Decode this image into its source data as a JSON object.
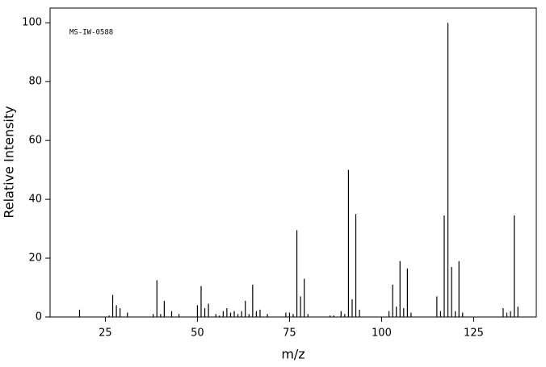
{
  "chart_data": {
    "type": "bar",
    "annotation": "MS-IW-0588",
    "x_label": "m/z",
    "y_label": "Relative Intensity",
    "x": [
      18,
      26,
      27,
      28,
      29,
      31,
      38,
      39,
      40,
      41,
      43,
      45,
      50,
      51,
      52,
      53,
      55,
      56,
      57,
      58,
      59,
      60,
      61,
      62,
      63,
      64,
      65,
      66,
      67,
      69,
      74,
      75,
      76,
      77,
      78,
      79,
      80,
      86,
      87,
      89,
      90,
      91,
      92,
      93,
      94,
      102,
      103,
      104,
      105,
      106,
      107,
      108,
      115,
      116,
      117,
      118,
      119,
      120,
      121,
      122,
      133,
      134,
      135,
      136,
      137
    ],
    "values": [
      2.5,
      0.5,
      7.5,
      4,
      3,
      1.5,
      1,
      12.5,
      1,
      5.5,
      2,
      1,
      4,
      10.5,
      3,
      4.5,
      1,
      0.5,
      2,
      3,
      1.5,
      2,
      1,
      2,
      5.5,
      1,
      11,
      2,
      2.5,
      1,
      1.5,
      1.5,
      1,
      29.5,
      7,
      13,
      1,
      0.5,
      0.5,
      2,
      1,
      50,
      6,
      35,
      2.5,
      2,
      11,
      3.5,
      19,
      3,
      16.5,
      1.5,
      7,
      2,
      34.5,
      100,
      17,
      2,
      19,
      1.5,
      3,
      1.5,
      2,
      34.5,
      3.5
    ],
    "color": "#000000",
    "xlim": [
      10,
      142
    ],
    "xticks": [
      25,
      50,
      75,
      100,
      125
    ],
    "ylim": [
      0,
      105
    ],
    "yticks": [
      0,
      20,
      40,
      60,
      80,
      100
    ]
  }
}
